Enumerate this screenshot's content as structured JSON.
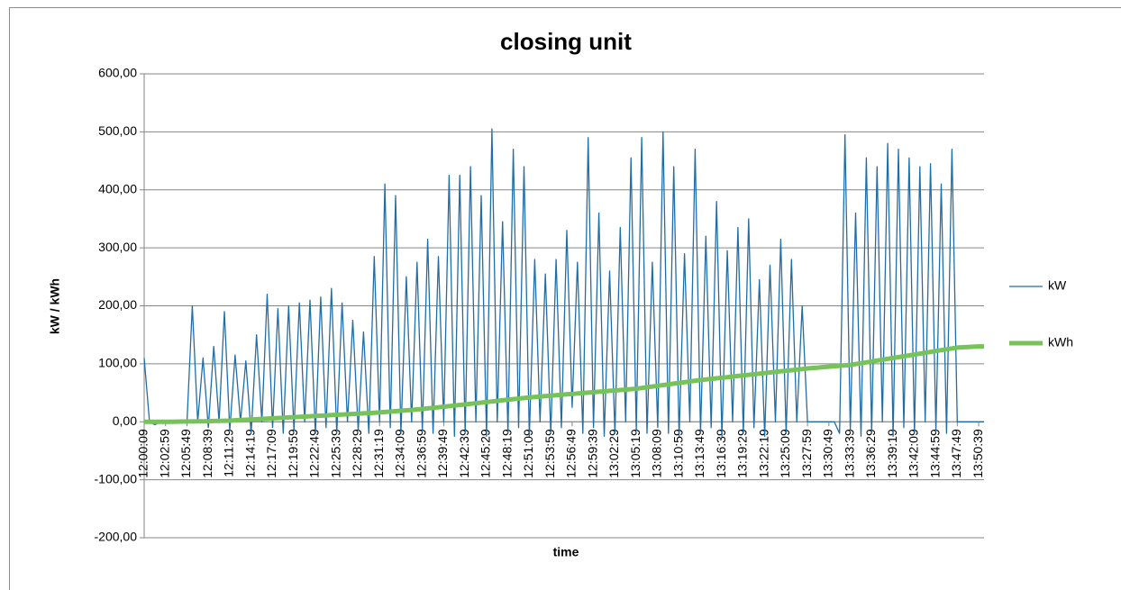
{
  "chart_data": {
    "type": "line",
    "title": "closing unit",
    "x_label": "time",
    "y_label": "kW / kWh",
    "categories": [
      "12:00:09",
      null,
      null,
      null,
      "12:02:59",
      null,
      null,
      null,
      "12:05:49",
      null,
      null,
      null,
      "12:08:39",
      null,
      null,
      null,
      "12:11:29",
      null,
      null,
      null,
      "12:14:19",
      null,
      null,
      null,
      "12:17:09",
      null,
      null,
      null,
      "12:19:59",
      null,
      null,
      null,
      "12:22:49",
      null,
      null,
      null,
      "12:25:39",
      null,
      null,
      null,
      "12:28:29",
      null,
      null,
      null,
      "12:31:19",
      null,
      null,
      null,
      "12:34:09",
      null,
      null,
      null,
      "12:36:59",
      null,
      null,
      null,
      "12:39:49",
      null,
      null,
      null,
      "12:42:39",
      null,
      null,
      null,
      "12:45:29",
      null,
      null,
      null,
      "12:48:19",
      null,
      null,
      null,
      "12:51:09",
      null,
      null,
      null,
      "12:53:59",
      null,
      null,
      null,
      "12:56:49",
      null,
      null,
      null,
      "12:59:39",
      null,
      null,
      null,
      "13:02:29",
      null,
      null,
      null,
      "13:05:19",
      null,
      null,
      null,
      "13:08:09",
      null,
      null,
      null,
      "13:10:59",
      null,
      null,
      null,
      "13:13:49",
      null,
      null,
      null,
      "13:16:39",
      null,
      null,
      null,
      "13:19:29",
      null,
      null,
      null,
      "13:22:19",
      null,
      null,
      null,
      "13:25:09",
      null,
      null,
      null,
      "13:27:59",
      null,
      null,
      null,
      "13:30:49",
      null,
      null,
      null,
      "13:33:39",
      null,
      null,
      null,
      "13:36:29",
      null,
      null,
      null,
      "13:39:19",
      null,
      null,
      null,
      "13:42:09",
      null,
      null,
      null,
      "13:44:59",
      null,
      null,
      null,
      "13:47:49",
      null,
      null,
      null,
      "13:50:39",
      null
    ],
    "series": [
      {
        "name": "kW",
        "color": "#1f6ea8",
        "width": 1.3,
        "values": [
          110,
          0,
          -5,
          0,
          0,
          0,
          0,
          0,
          0,
          200,
          0,
          110,
          -10,
          130,
          0,
          190,
          -15,
          115,
          0,
          105,
          -20,
          150,
          0,
          220,
          -10,
          195,
          -20,
          200,
          -15,
          205,
          0,
          210,
          -20,
          215,
          -10,
          230,
          -20,
          205,
          0,
          175,
          -15,
          155,
          -20,
          285,
          0,
          410,
          -10,
          390,
          -20,
          250,
          0,
          275,
          -15,
          315,
          -20,
          285,
          0,
          425,
          -25,
          425,
          -20,
          440,
          0,
          390,
          -25,
          505,
          0,
          345,
          -20,
          470,
          -10,
          440,
          -25,
          280,
          0,
          255,
          -20,
          280,
          -10,
          330,
          25,
          275,
          -20,
          490,
          -10,
          360,
          -25,
          260,
          -20,
          335,
          0,
          455,
          -15,
          490,
          -20,
          275,
          -10,
          500,
          -20,
          440,
          -25,
          290,
          0,
          470,
          -20,
          320,
          -10,
          380,
          -25,
          295,
          0,
          335,
          -20,
          350,
          -10,
          245,
          -25,
          270,
          0,
          315,
          -20,
          280,
          0,
          200,
          0,
          0,
          0,
          0,
          0,
          0,
          -20,
          495,
          -15,
          360,
          -25,
          455,
          -20,
          440,
          0,
          480,
          -25,
          470,
          -10,
          455,
          -20,
          440,
          0,
          445,
          -15,
          410,
          -20,
          470,
          0,
          0,
          0,
          0,
          0,
          0
        ]
      },
      {
        "name": "kWh",
        "color": "#77c25a",
        "width": 5,
        "values": [
          0,
          0,
          0,
          0,
          0,
          0.1,
          0.3,
          0.4,
          0.5,
          0.6,
          0.8,
          0.9,
          1,
          1.3,
          1.5,
          1.8,
          2,
          2.5,
          3,
          3.5,
          4,
          4.5,
          5,
          5.5,
          6,
          6.5,
          7,
          7.5,
          8,
          8.5,
          9,
          9.5,
          10,
          10.5,
          11,
          11.5,
          12,
          12.5,
          13,
          13.5,
          14,
          14.5,
          15,
          15.5,
          16,
          16.8,
          17.5,
          18.3,
          19,
          19.8,
          20.5,
          21.3,
          22,
          23,
          24,
          25,
          26,
          27,
          28,
          29,
          30,
          31,
          32,
          33,
          34,
          35,
          36,
          37,
          38,
          39,
          40,
          41,
          42,
          42.8,
          43.5,
          44.3,
          45,
          45.8,
          46.5,
          47.3,
          48,
          48.8,
          49.5,
          50.3,
          51,
          51.8,
          52.5,
          53.3,
          54,
          54.8,
          55.5,
          56.3,
          57,
          58.3,
          59.5,
          60.8,
          62,
          63.3,
          64.5,
          65.8,
          67,
          68.3,
          69.5,
          70.8,
          72,
          73,
          74,
          75,
          76,
          77,
          78,
          79,
          80,
          81,
          82,
          83,
          84,
          85,
          86,
          87,
          88,
          89,
          90,
          91,
          92,
          92.8,
          93.5,
          94.3,
          95,
          95.8,
          96.5,
          97.3,
          98,
          99.5,
          101,
          102.5,
          104,
          105.5,
          107,
          108.5,
          110,
          111.5,
          113,
          114.5,
          116,
          117.5,
          119,
          120.5,
          122,
          123.5,
          125,
          126.5,
          128,
          128.5,
          129,
          129.5,
          130,
          130
        ]
      }
    ],
    "ylim": [
      -200,
      600
    ],
    "yticks": [
      {
        "value": -200,
        "label": "-200,00"
      },
      {
        "value": -100,
        "label": "-100,00"
      },
      {
        "value": 0,
        "label": "0,00"
      },
      {
        "value": 100,
        "label": "100,00"
      },
      {
        "value": 200,
        "label": "200,00"
      },
      {
        "value": 300,
        "label": "300,00"
      },
      {
        "value": 400,
        "label": "400,00"
      },
      {
        "value": 500,
        "label": "500,00"
      },
      {
        "value": 600,
        "label": "600,00"
      }
    ],
    "grid": true,
    "legend": "right"
  }
}
